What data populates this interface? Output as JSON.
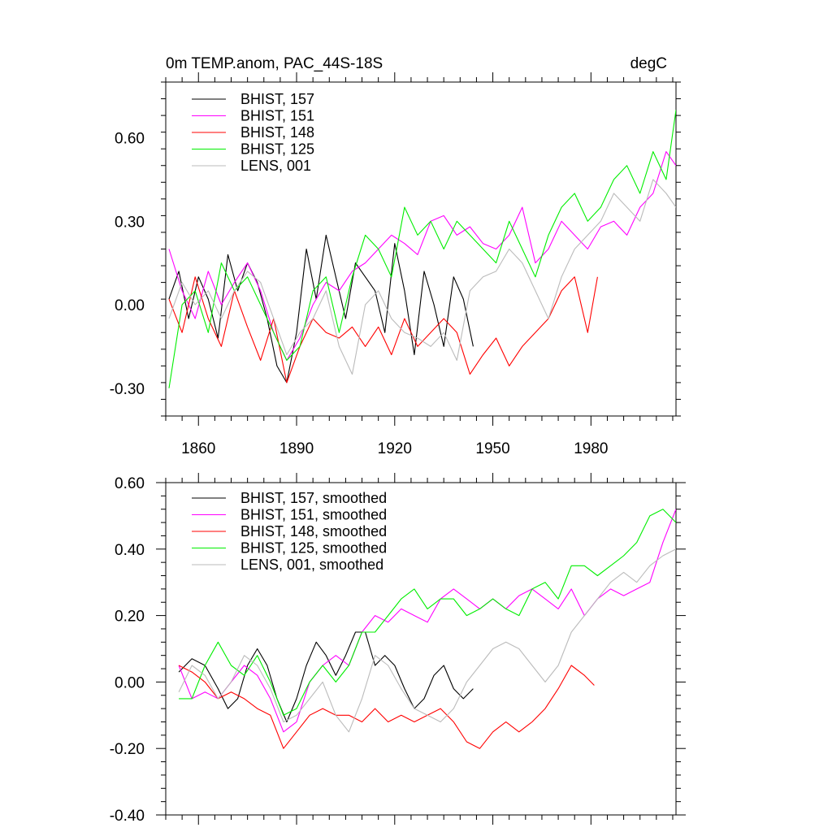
{
  "figure": {
    "title_left": "0m TEMP.anom, PAC_44S-18S",
    "title_right": "degC"
  },
  "chart_data": [
    {
      "type": "line",
      "title": "0m TEMP.anom, PAC_44S-18S",
      "units": "degC",
      "xlim": [
        1850,
        2006
      ],
      "ylim": [
        -0.4,
        0.8
      ],
      "xticks": [
        1860,
        1890,
        1920,
        1950,
        1980
      ],
      "yticks": [
        -0.3,
        0.0,
        0.3,
        0.6
      ],
      "ytick_labels": [
        "-0.30",
        "0.00",
        "0.30",
        "0.60"
      ],
      "xtick_labels": [
        "1860",
        "1890",
        "1920",
        "1950",
        "1980"
      ],
      "legend_position": "top-left",
      "series": [
        {
          "name": "BHIST, 157",
          "color": "#000000",
          "x": [
            1851,
            1854,
            1857,
            1860,
            1863,
            1866,
            1869,
            1872,
            1875,
            1878,
            1881,
            1884,
            1887,
            1890,
            1893,
            1896,
            1899,
            1902,
            1905,
            1908,
            1911,
            1914,
            1917,
            1920,
            1923,
            1926,
            1929,
            1932,
            1935,
            1938,
            1941,
            1944
          ],
          "y": [
            0.02,
            0.12,
            -0.05,
            0.1,
            0.02,
            -0.12,
            0.18,
            0.05,
            0.15,
            0.08,
            -0.05,
            -0.22,
            -0.28,
            -0.1,
            0.2,
            0.02,
            0.25,
            0.1,
            -0.05,
            0.15,
            0.1,
            0.05,
            -0.1,
            0.22,
            0.05,
            -0.18,
            0.12,
            0.0,
            -0.15,
            0.1,
            0.02,
            -0.15
          ]
        },
        {
          "name": "BHIST, 151",
          "color": "#ff00ff",
          "x": [
            1851,
            1855,
            1859,
            1863,
            1867,
            1871,
            1875,
            1879,
            1883,
            1887,
            1891,
            1895,
            1899,
            1903,
            1907,
            1911,
            1915,
            1919,
            1923,
            1927,
            1931,
            1935,
            1939,
            1943,
            1947,
            1951,
            1955,
            1959,
            1963,
            1967,
            1971,
            1975,
            1979,
            1983,
            1987,
            1991,
            1995,
            1999,
            2003,
            2006
          ],
          "y": [
            0.2,
            0.05,
            -0.05,
            0.12,
            0.0,
            0.08,
            0.15,
            0.05,
            -0.1,
            -0.2,
            -0.12,
            0.0,
            0.08,
            0.05,
            0.12,
            0.15,
            0.2,
            0.25,
            0.22,
            0.18,
            0.3,
            0.32,
            0.25,
            0.28,
            0.22,
            0.2,
            0.25,
            0.35,
            0.15,
            0.2,
            0.3,
            0.25,
            0.2,
            0.28,
            0.3,
            0.25,
            0.35,
            0.4,
            0.55,
            0.5
          ]
        },
        {
          "name": "BHIST, 148",
          "color": "#ff0000",
          "x": [
            1851,
            1855,
            1859,
            1863,
            1867,
            1871,
            1875,
            1879,
            1883,
            1887,
            1891,
            1895,
            1899,
            1903,
            1907,
            1911,
            1915,
            1919,
            1923,
            1927,
            1931,
            1935,
            1939,
            1943,
            1947,
            1951,
            1955,
            1959,
            1963,
            1967,
            1971,
            1975,
            1979,
            1982
          ],
          "y": [
            0.02,
            -0.1,
            0.1,
            -0.05,
            -0.15,
            0.05,
            -0.08,
            -0.2,
            -0.05,
            -0.28,
            -0.15,
            -0.05,
            -0.1,
            -0.12,
            -0.08,
            -0.15,
            -0.08,
            -0.18,
            -0.05,
            -0.15,
            -0.1,
            -0.05,
            -0.1,
            -0.25,
            -0.18,
            -0.12,
            -0.22,
            -0.15,
            -0.1,
            -0.05,
            0.05,
            0.1,
            -0.1,
            0.1
          ]
        },
        {
          "name": "BHIST, 125",
          "color": "#00ee00",
          "x": [
            1851,
            1855,
            1859,
            1863,
            1867,
            1871,
            1875,
            1879,
            1883,
            1887,
            1891,
            1895,
            1899,
            1903,
            1907,
            1911,
            1915,
            1919,
            1923,
            1927,
            1931,
            1935,
            1939,
            1943,
            1947,
            1951,
            1955,
            1959,
            1963,
            1967,
            1971,
            1975,
            1979,
            1983,
            1987,
            1991,
            1995,
            1999,
            2003,
            2006
          ],
          "y": [
            -0.3,
            0.0,
            0.05,
            -0.1,
            0.15,
            0.05,
            0.1,
            0.0,
            -0.1,
            -0.2,
            -0.15,
            0.05,
            0.1,
            -0.1,
            0.1,
            0.25,
            0.2,
            0.1,
            0.35,
            0.25,
            0.3,
            0.2,
            0.3,
            0.25,
            0.2,
            0.15,
            0.3,
            0.2,
            0.1,
            0.25,
            0.35,
            0.4,
            0.3,
            0.35,
            0.45,
            0.5,
            0.4,
            0.55,
            0.45,
            0.7
          ]
        },
        {
          "name": "LENS, 001",
          "color": "#bbbbbb",
          "x": [
            1851,
            1855,
            1859,
            1863,
            1867,
            1871,
            1875,
            1879,
            1883,
            1887,
            1891,
            1895,
            1899,
            1903,
            1907,
            1911,
            1915,
            1919,
            1923,
            1927,
            1931,
            1935,
            1939,
            1943,
            1947,
            1951,
            1955,
            1959,
            1963,
            1967,
            1971,
            1975,
            1979,
            1983,
            1987,
            1991,
            1995,
            1999,
            2003,
            2006
          ],
          "y": [
            -0.05,
            0.08,
            0.0,
            0.05,
            -0.05,
            0.05,
            0.12,
            0.08,
            -0.05,
            -0.18,
            -0.1,
            -0.05,
            0.05,
            -0.15,
            -0.25,
            0.0,
            0.05,
            -0.05,
            -0.1,
            -0.12,
            -0.15,
            -0.1,
            -0.2,
            0.05,
            0.1,
            0.12,
            0.2,
            0.15,
            0.05,
            -0.05,
            0.1,
            0.2,
            0.25,
            0.3,
            0.4,
            0.35,
            0.3,
            0.45,
            0.4,
            0.35
          ]
        }
      ]
    },
    {
      "type": "line",
      "title": "",
      "xlim": [
        1850,
        2006
      ],
      "ylim": [
        -0.4,
        0.6
      ],
      "xticks": [
        1860,
        1890,
        1920,
        1950,
        1980
      ],
      "yticks": [
        -0.4,
        -0.2,
        0.0,
        0.2,
        0.4,
        0.6
      ],
      "ytick_labels": [
        "-0.40",
        "-0.20",
        "0.00",
        "0.20",
        "0.40",
        "0.60"
      ],
      "legend_position": "top-left",
      "series": [
        {
          "name": "BHIST, 157, smoothed",
          "color": "#000000",
          "x": [
            1854,
            1858,
            1862,
            1866,
            1869,
            1872,
            1875,
            1878,
            1881,
            1884,
            1887,
            1890,
            1893,
            1896,
            1899,
            1902,
            1905,
            1908,
            1911,
            1914,
            1917,
            1920,
            1923,
            1926,
            1929,
            1932,
            1935,
            1938,
            1941,
            1944
          ],
          "y": [
            0.03,
            0.07,
            0.05,
            -0.02,
            -0.08,
            -0.05,
            0.05,
            0.1,
            0.05,
            -0.05,
            -0.12,
            -0.05,
            0.05,
            0.12,
            0.08,
            0.02,
            0.08,
            0.15,
            0.15,
            0.05,
            0.08,
            0.05,
            -0.02,
            -0.08,
            -0.05,
            0.02,
            0.05,
            -0.02,
            -0.05,
            -0.02
          ]
        },
        {
          "name": "BHIST, 151, smoothed",
          "color": "#ff00ff",
          "x": [
            1854,
            1858,
            1862,
            1866,
            1870,
            1874,
            1878,
            1882,
            1886,
            1890,
            1894,
            1898,
            1902,
            1906,
            1910,
            1914,
            1918,
            1922,
            1926,
            1930,
            1934,
            1938,
            1942,
            1946,
            1950,
            1954,
            1958,
            1962,
            1966,
            1970,
            1974,
            1978,
            1982,
            1986,
            1990,
            1994,
            1998,
            2002,
            2006
          ],
          "y": [
            0.05,
            -0.05,
            -0.03,
            -0.05,
            0.0,
            0.05,
            0.02,
            -0.05,
            -0.15,
            -0.12,
            0.0,
            0.05,
            0.08,
            0.05,
            0.15,
            0.2,
            0.18,
            0.22,
            0.2,
            0.18,
            0.25,
            0.28,
            0.25,
            0.22,
            0.25,
            0.22,
            0.26,
            0.28,
            0.25,
            0.22,
            0.28,
            0.2,
            0.25,
            0.28,
            0.26,
            0.28,
            0.3,
            0.42,
            0.52
          ]
        },
        {
          "name": "BHIST, 148, smoothed",
          "color": "#ff0000",
          "x": [
            1854,
            1858,
            1862,
            1866,
            1870,
            1874,
            1878,
            1882,
            1886,
            1890,
            1894,
            1898,
            1902,
            1906,
            1910,
            1914,
            1918,
            1922,
            1926,
            1930,
            1934,
            1938,
            1942,
            1946,
            1950,
            1954,
            1958,
            1962,
            1966,
            1970,
            1974,
            1978,
            1981
          ],
          "y": [
            0.05,
            0.03,
            0.0,
            -0.05,
            -0.03,
            -0.05,
            -0.08,
            -0.1,
            -0.2,
            -0.15,
            -0.1,
            -0.08,
            -0.1,
            -0.1,
            -0.12,
            -0.08,
            -0.12,
            -0.1,
            -0.12,
            -0.1,
            -0.08,
            -0.12,
            -0.18,
            -0.2,
            -0.15,
            -0.12,
            -0.15,
            -0.12,
            -0.08,
            -0.02,
            0.05,
            0.02,
            -0.01
          ]
        },
        {
          "name": "BHIST, 125, smoothed",
          "color": "#00ee00",
          "x": [
            1854,
            1858,
            1862,
            1866,
            1870,
            1874,
            1878,
            1882,
            1886,
            1890,
            1894,
            1898,
            1902,
            1906,
            1910,
            1914,
            1918,
            1922,
            1926,
            1930,
            1934,
            1938,
            1942,
            1946,
            1950,
            1954,
            1958,
            1962,
            1966,
            1970,
            1974,
            1978,
            1982,
            1986,
            1990,
            1994,
            1998,
            2002,
            2006
          ],
          "y": [
            -0.05,
            -0.05,
            0.05,
            0.12,
            0.05,
            0.02,
            0.08,
            0.0,
            -0.1,
            -0.08,
            0.0,
            0.05,
            0.0,
            0.05,
            0.15,
            0.15,
            0.2,
            0.25,
            0.28,
            0.22,
            0.25,
            0.25,
            0.2,
            0.22,
            0.25,
            0.22,
            0.2,
            0.28,
            0.3,
            0.25,
            0.35,
            0.35,
            0.32,
            0.35,
            0.38,
            0.42,
            0.5,
            0.52,
            0.48
          ]
        },
        {
          "name": "LENS, 001, smoothed",
          "color": "#bbbbbb",
          "x": [
            1854,
            1858,
            1862,
            1866,
            1870,
            1874,
            1878,
            1882,
            1886,
            1890,
            1894,
            1898,
            1902,
            1906,
            1910,
            1914,
            1918,
            1922,
            1926,
            1930,
            1934,
            1938,
            1942,
            1946,
            1950,
            1954,
            1958,
            1962,
            1966,
            1970,
            1974,
            1978,
            1982,
            1986,
            1990,
            1994,
            1998,
            2002,
            2006
          ],
          "y": [
            -0.03,
            0.05,
            0.02,
            -0.05,
            0.0,
            0.08,
            0.05,
            -0.02,
            -0.12,
            -0.1,
            -0.05,
            0.0,
            -0.1,
            -0.15,
            -0.05,
            0.08,
            0.05,
            -0.02,
            -0.08,
            -0.1,
            -0.12,
            -0.08,
            0.0,
            0.05,
            0.1,
            0.12,
            0.1,
            0.05,
            0.0,
            0.05,
            0.15,
            0.2,
            0.25,
            0.3,
            0.33,
            0.3,
            0.35,
            0.38,
            0.4
          ]
        }
      ]
    }
  ]
}
